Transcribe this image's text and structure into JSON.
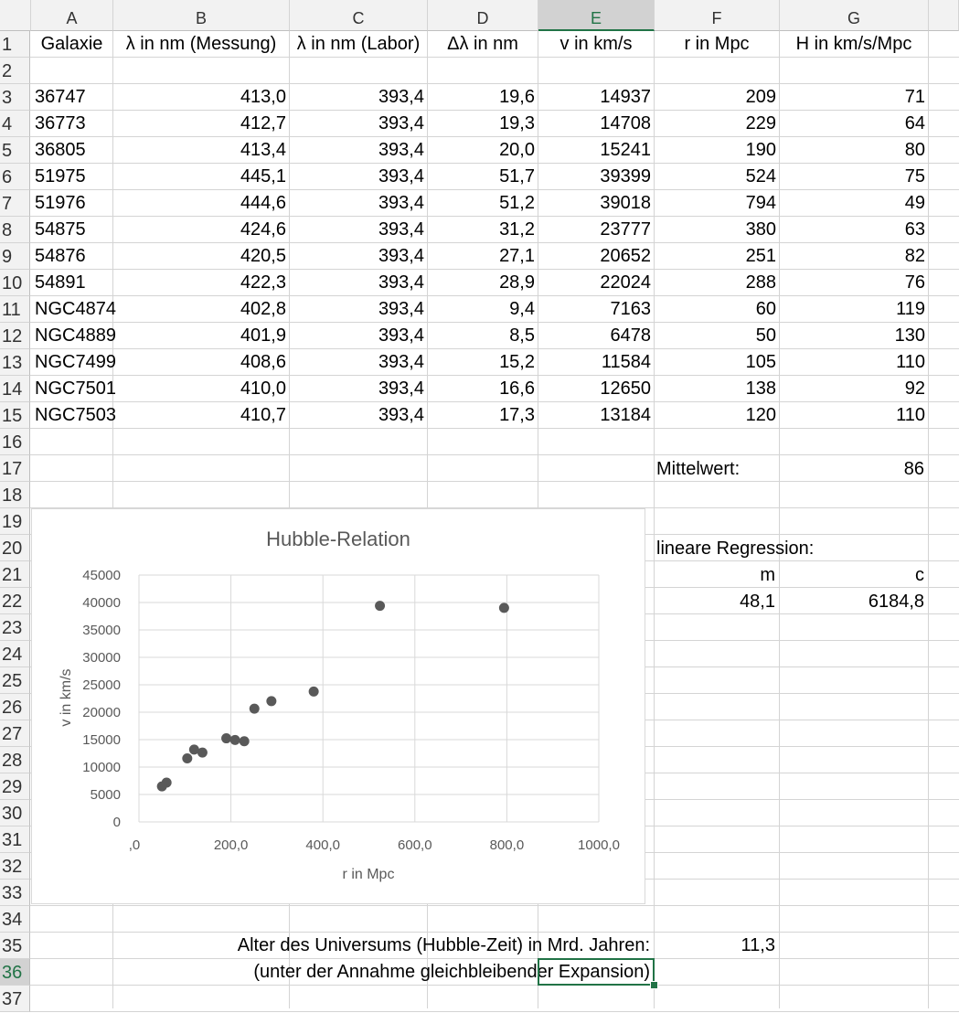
{
  "columns": [
    "A",
    "B",
    "C",
    "D",
    "E",
    "F",
    "G"
  ],
  "selected_column": "E",
  "row_numbers": [
    "1",
    "2",
    "3",
    "4",
    "5",
    "6",
    "7",
    "8",
    "9",
    "10",
    "11",
    "12",
    "13",
    "14",
    "15",
    "16",
    "17",
    "18",
    "19",
    "20",
    "21",
    "22",
    "23",
    "24",
    "25",
    "26",
    "27",
    "28",
    "29",
    "30",
    "31",
    "32",
    "33",
    "34",
    "35",
    "36",
    "37"
  ],
  "selected_row": "36",
  "headers": {
    "galaxie": "Galaxie",
    "lambda_mess": "λ in nm (Messung)",
    "lambda_labor": "λ in nm (Labor)",
    "delta_lambda": "Δλ in nm",
    "v": "v in km/s",
    "r": "r in Mpc",
    "h": "H in km/s/Mpc"
  },
  "rows": [
    {
      "galaxie": "36747",
      "lambda_mess": "413,0",
      "lambda_labor": "393,4",
      "delta_lambda": "19,6",
      "v": "14937",
      "r": "209",
      "h": "71"
    },
    {
      "galaxie": "36773",
      "lambda_mess": "412,7",
      "lambda_labor": "393,4",
      "delta_lambda": "19,3",
      "v": "14708",
      "r": "229",
      "h": "64"
    },
    {
      "galaxie": "36805",
      "lambda_mess": "413,4",
      "lambda_labor": "393,4",
      "delta_lambda": "20,0",
      "v": "15241",
      "r": "190",
      "h": "80"
    },
    {
      "galaxie": "51975",
      "lambda_mess": "445,1",
      "lambda_labor": "393,4",
      "delta_lambda": "51,7",
      "v": "39399",
      "r": "524",
      "h": "75"
    },
    {
      "galaxie": "51976",
      "lambda_mess": "444,6",
      "lambda_labor": "393,4",
      "delta_lambda": "51,2",
      "v": "39018",
      "r": "794",
      "h": "49"
    },
    {
      "galaxie": "54875",
      "lambda_mess": "424,6",
      "lambda_labor": "393,4",
      "delta_lambda": "31,2",
      "v": "23777",
      "r": "380",
      "h": "63"
    },
    {
      "galaxie": "54876",
      "lambda_mess": "420,5",
      "lambda_labor": "393,4",
      "delta_lambda": "27,1",
      "v": "20652",
      "r": "251",
      "h": "82"
    },
    {
      "galaxie": "54891",
      "lambda_mess": "422,3",
      "lambda_labor": "393,4",
      "delta_lambda": "28,9",
      "v": "22024",
      "r": "288",
      "h": "76"
    },
    {
      "galaxie": "NGC4874",
      "lambda_mess": "402,8",
      "lambda_labor": "393,4",
      "delta_lambda": "9,4",
      "v": "7163",
      "r": "60",
      "h": "119"
    },
    {
      "galaxie": "NGC4889",
      "lambda_mess": "401,9",
      "lambda_labor": "393,4",
      "delta_lambda": "8,5",
      "v": "6478",
      "r": "50",
      "h": "130"
    },
    {
      "galaxie": "NGC7499",
      "lambda_mess": "408,6",
      "lambda_labor": "393,4",
      "delta_lambda": "15,2",
      "v": "11584",
      "r": "105",
      "h": "110"
    },
    {
      "galaxie": "NGC7501",
      "lambda_mess": "410,0",
      "lambda_labor": "393,4",
      "delta_lambda": "16,6",
      "v": "12650",
      "r": "138",
      "h": "92"
    },
    {
      "galaxie": "NGC7503",
      "lambda_mess": "410,7",
      "lambda_labor": "393,4",
      "delta_lambda": "17,3",
      "v": "13184",
      "r": "120",
      "h": "110"
    }
  ],
  "mittelwert": {
    "label": "Mittelwert:",
    "value": "86"
  },
  "regression": {
    "label": "lineare Regression:",
    "m_label": "m",
    "c_label": "c",
    "m_value": "48,1",
    "c_value": "6184,8"
  },
  "hubble_time": {
    "label": "Alter des Universums (Hubble-Zeit) in Mrd. Jahren:",
    "value": "11,3",
    "note": "(unter der Annahme gleichbleibender Expansion)"
  },
  "colors": {
    "accent": "#217346",
    "marker": "#595959",
    "gridline": "#d9d9d9",
    "title": "#595959"
  },
  "chart_data": {
    "type": "scatter",
    "title": "Hubble-Relation",
    "xlabel": "r in Mpc",
    "ylabel": "v in km/s",
    "xlim": [
      0,
      1000
    ],
    "ylim": [
      0,
      45000
    ],
    "x_ticks": [
      ",0",
      "200,0",
      "400,0",
      "600,0",
      "800,0",
      "1000,0"
    ],
    "y_ticks": [
      "0",
      "5000",
      "10000",
      "15000",
      "20000",
      "25000",
      "30000",
      "35000",
      "40000",
      "45000"
    ],
    "grid": true,
    "series": [
      {
        "x": [
          209,
          229,
          190,
          524,
          794,
          380,
          251,
          288,
          60,
          50,
          105,
          138,
          120
        ],
        "y": [
          14937,
          14708,
          15241,
          39399,
          39018,
          23777,
          20652,
          22024,
          7163,
          6478,
          11584,
          12650,
          13184
        ]
      }
    ]
  }
}
